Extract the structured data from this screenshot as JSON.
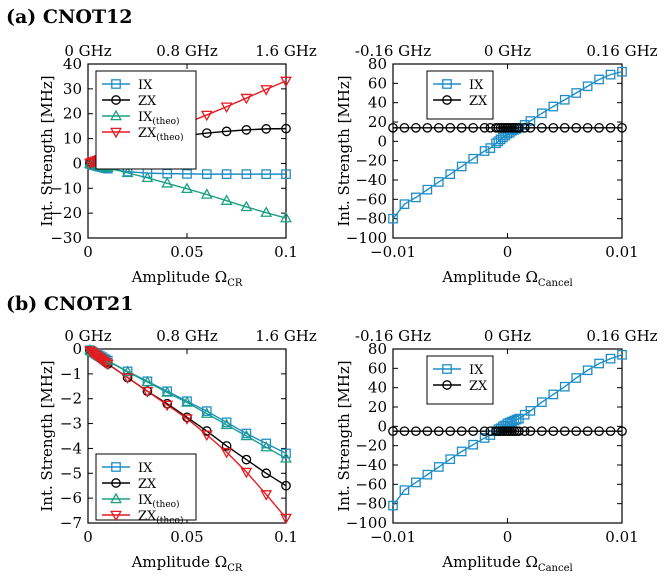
{
  "figure": {
    "panel_a_title": "(a) CNOT12",
    "panel_b_title": "(b) CNOT21"
  },
  "colors": {
    "IX": "#1f8ec8",
    "ZX": "#000000",
    "IX_theo": "#1aa085",
    "ZX_theo": "#e8191e"
  },
  "chart_data": [
    {
      "id": "a-left",
      "type": "line",
      "title": "",
      "xlabel": "Amplitude",
      "xlabel_symbol": "Ω",
      "xlabel_sub": "CR",
      "ylabel": "Int. Strength [MHz]",
      "xlim": [
        0,
        0.1
      ],
      "ylim": [
        -30,
        40
      ],
      "xticks": [
        0,
        0.05,
        0.1
      ],
      "xtick_labels": [
        "0",
        "0.05",
        "0.1"
      ],
      "yticks": [
        -30,
        -20,
        -10,
        0,
        10,
        20,
        30,
        40
      ],
      "ytick_labels": [
        "−30",
        "−20",
        "−10",
        "0",
        "10",
        "20",
        "30",
        "40"
      ],
      "top_axis_labels": [
        "0 GHz",
        "0.8 GHz",
        "1.6 GHz"
      ],
      "top_axis_values": [
        0,
        0.05,
        0.1
      ],
      "grid": false,
      "legend": "top-left",
      "series": [
        {
          "name": "IX",
          "key": "IX",
          "marker": "square",
          "x": [
            0.001,
            0.002,
            0.003,
            0.004,
            0.005,
            0.006,
            0.007,
            0.008,
            0.009,
            0.01,
            0.02,
            0.03,
            0.04,
            0.05,
            0.06,
            0.07,
            0.08,
            0.09,
            0.1
          ],
          "y": [
            -0.2,
            -0.4,
            -0.7,
            -0.9,
            -1.1,
            -1.3,
            -1.5,
            -1.7,
            -1.9,
            -2.1,
            -3.3,
            -3.9,
            -4.1,
            -4.2,
            -4.3,
            -4.3,
            -4.3,
            -4.3,
            -4.3
          ]
        },
        {
          "name": "ZX",
          "key": "ZX",
          "marker": "circle",
          "x": [
            0.001,
            0.002,
            0.003,
            0.004,
            0.005,
            0.006,
            0.007,
            0.008,
            0.009,
            0.01,
            0.02,
            0.03,
            0.04,
            0.05,
            0.06,
            0.07,
            0.08,
            0.09,
            0.1
          ],
          "y": [
            0.2,
            0.5,
            0.8,
            1.0,
            1.3,
            1.6,
            1.9,
            2.2,
            2.4,
            2.7,
            5.8,
            8.0,
            9.8,
            11.2,
            12.2,
            12.9,
            13.5,
            13.9,
            14.0
          ]
        },
        {
          "name": "IX",
          "name_sub": "(theo)",
          "key": "IX_theo",
          "marker": "triangle-up",
          "x": [
            0.001,
            0.002,
            0.003,
            0.004,
            0.005,
            0.006,
            0.007,
            0.008,
            0.009,
            0.01,
            0.02,
            0.03,
            0.04,
            0.05,
            0.06,
            0.07,
            0.08,
            0.09,
            0.1
          ],
          "y": [
            -0.1,
            -0.3,
            -0.5,
            -0.6,
            -0.8,
            -1.0,
            -1.2,
            -1.4,
            -1.6,
            -1.8,
            -3.8,
            -5.8,
            -8.0,
            -10.2,
            -12.5,
            -15.0,
            -17.5,
            -19.8,
            -22.0
          ]
        },
        {
          "name": "ZX",
          "name_sub": "(theo)",
          "key": "ZX_theo",
          "marker": "triangle-down",
          "x": [
            0.001,
            0.002,
            0.003,
            0.004,
            0.005,
            0.006,
            0.007,
            0.008,
            0.009,
            0.01,
            0.02,
            0.03,
            0.04,
            0.05,
            0.06,
            0.07,
            0.08,
            0.09,
            0.1
          ],
          "y": [
            0.2,
            0.5,
            0.8,
            1.1,
            1.4,
            1.7,
            2.0,
            2.3,
            2.6,
            3.0,
            6.5,
            9.8,
            13.0,
            16.3,
            19.5,
            22.8,
            26.3,
            29.8,
            33.2
          ]
        }
      ]
    },
    {
      "id": "a-right",
      "type": "line",
      "title": "",
      "xlabel": "Amplitude",
      "xlabel_symbol": "Ω",
      "xlabel_sub": "Cancel",
      "ylabel": "Int. Strength [MHz]",
      "xlim": [
        -0.01,
        0.01
      ],
      "ylim": [
        -100,
        80
      ],
      "xticks": [
        -0.01,
        0,
        0.01
      ],
      "xtick_labels": [
        "−0.01",
        "0",
        "0.01"
      ],
      "yticks": [
        -100,
        -80,
        -60,
        -40,
        -20,
        0,
        20,
        40,
        60,
        80
      ],
      "ytick_labels": [
        "−100",
        "−80",
        "−60",
        "−40",
        "−20",
        "0",
        "20",
        "40",
        "60",
        "80"
      ],
      "top_axis_labels": [
        "-0.16 GHz",
        "0 GHz",
        "0.16 GHz"
      ],
      "top_axis_values": [
        -0.01,
        0,
        0.01
      ],
      "grid": false,
      "legend": "top-left",
      "series": [
        {
          "name": "IX",
          "key": "IX",
          "marker": "square",
          "x": [
            -0.01,
            -0.009,
            -0.008,
            -0.007,
            -0.006,
            -0.005,
            -0.004,
            -0.003,
            -0.002,
            -0.0015,
            -0.001,
            -0.0008,
            -0.0006,
            -0.0004,
            -0.0002,
            0,
            0.0002,
            0.0004,
            0.0006,
            0.0008,
            0.001,
            0.0015,
            0.002,
            0.003,
            0.004,
            0.005,
            0.006,
            0.007,
            0.008,
            0.009,
            0.01
          ],
          "y": [
            -80,
            -65,
            -58,
            -50,
            -42,
            -34,
            -26,
            -18,
            -10,
            -7,
            -2,
            0,
            2,
            4,
            6,
            8,
            9,
            11,
            12,
            13,
            14,
            17,
            21,
            29,
            36,
            43,
            50,
            57,
            64,
            69,
            72
          ]
        },
        {
          "name": "ZX",
          "key": "ZX",
          "marker": "circle",
          "x": [
            -0.01,
            -0.009,
            -0.008,
            -0.007,
            -0.006,
            -0.005,
            -0.004,
            -0.003,
            -0.002,
            -0.0015,
            -0.001,
            -0.0008,
            -0.0006,
            -0.0004,
            -0.0002,
            0,
            0.0002,
            0.0004,
            0.0006,
            0.0008,
            0.001,
            0.0015,
            0.002,
            0.003,
            0.004,
            0.005,
            0.006,
            0.007,
            0.008,
            0.009,
            0.01
          ],
          "y": [
            14,
            14,
            14,
            14,
            14,
            14,
            14,
            14,
            14,
            14,
            14,
            14,
            14,
            14,
            14,
            14,
            14,
            14,
            14,
            14,
            14,
            14,
            14,
            14,
            14,
            14,
            14,
            14,
            14,
            14,
            14
          ]
        }
      ]
    },
    {
      "id": "b-left",
      "type": "line",
      "title": "",
      "xlabel": "Amplitude",
      "xlabel_symbol": "Ω",
      "xlabel_sub": "CR",
      "ylabel": "Int. Strength [MHz]",
      "xlim": [
        0,
        0.1
      ],
      "ylim": [
        -7,
        0
      ],
      "xticks": [
        0,
        0.05,
        0.1
      ],
      "xtick_labels": [
        "0",
        "0.05",
        "0.1"
      ],
      "yticks": [
        -7,
        -6,
        -5,
        -4,
        -3,
        -2,
        -1,
        0
      ],
      "ytick_labels": [
        "−7",
        "−6",
        "−5",
        "−4",
        "−3",
        "−2",
        "−1",
        "0"
      ],
      "top_axis_labels": [
        "0 GHz",
        "0.8 GHz",
        "1.6 GHz"
      ],
      "top_axis_values": [
        0,
        0.05,
        0.1
      ],
      "grid": false,
      "legend": "bottom-left",
      "series": [
        {
          "name": "IX",
          "key": "IX",
          "marker": "square",
          "x": [
            0.001,
            0.002,
            0.003,
            0.004,
            0.005,
            0.006,
            0.007,
            0.008,
            0.009,
            0.01,
            0.02,
            0.03,
            0.04,
            0.05,
            0.06,
            0.07,
            0.08,
            0.09,
            0.1
          ],
          "y": [
            -0.05,
            -0.1,
            -0.14,
            -0.19,
            -0.24,
            -0.28,
            -0.33,
            -0.38,
            -0.42,
            -0.47,
            -0.9,
            -1.3,
            -1.7,
            -2.1,
            -2.5,
            -2.95,
            -3.4,
            -3.8,
            -4.2
          ]
        },
        {
          "name": "ZX",
          "key": "ZX",
          "marker": "circle",
          "x": [
            0.001,
            0.002,
            0.003,
            0.004,
            0.005,
            0.006,
            0.007,
            0.008,
            0.009,
            0.01,
            0.02,
            0.03,
            0.04,
            0.05,
            0.06,
            0.07,
            0.08,
            0.09,
            0.1
          ],
          "y": [
            -0.06,
            -0.12,
            -0.18,
            -0.24,
            -0.3,
            -0.36,
            -0.42,
            -0.48,
            -0.54,
            -0.6,
            -1.15,
            -1.7,
            -2.2,
            -2.75,
            -3.3,
            -3.9,
            -4.45,
            -5.0,
            -5.5
          ]
        },
        {
          "name": "IX",
          "name_sub": "(theo)",
          "key": "IX_theo",
          "marker": "triangle-up",
          "x": [
            0.001,
            0.002,
            0.003,
            0.004,
            0.005,
            0.006,
            0.007,
            0.008,
            0.009,
            0.01,
            0.02,
            0.03,
            0.04,
            0.05,
            0.06,
            0.07,
            0.08,
            0.09,
            0.1
          ],
          "y": [
            -0.05,
            -0.1,
            -0.15,
            -0.2,
            -0.25,
            -0.3,
            -0.34,
            -0.39,
            -0.43,
            -0.48,
            -0.92,
            -1.33,
            -1.75,
            -2.15,
            -2.6,
            -3.05,
            -3.5,
            -3.95,
            -4.4
          ]
        },
        {
          "name": "ZX",
          "name_sub": "(theo)",
          "key": "ZX_theo",
          "marker": "triangle-down",
          "x": [
            0.001,
            0.002,
            0.003,
            0.004,
            0.005,
            0.006,
            0.007,
            0.008,
            0.009,
            0.01,
            0.02,
            0.03,
            0.04,
            0.05,
            0.06,
            0.07,
            0.08,
            0.09,
            0.1
          ],
          "y": [
            -0.06,
            -0.12,
            -0.18,
            -0.24,
            -0.3,
            -0.36,
            -0.42,
            -0.48,
            -0.54,
            -0.6,
            -1.15,
            -1.7,
            -2.25,
            -2.8,
            -3.45,
            -4.15,
            -4.95,
            -5.85,
            -6.8
          ]
        }
      ]
    },
    {
      "id": "b-right",
      "type": "line",
      "title": "",
      "xlabel": "Amplitude",
      "xlabel_symbol": "Ω",
      "xlabel_sub": "Cancel",
      "ylabel": "Int. Strength [MHz]",
      "xlim": [
        -0.01,
        0.01
      ],
      "ylim": [
        -100,
        80
      ],
      "xticks": [
        -0.01,
        0,
        0.01
      ],
      "xtick_labels": [
        "−0.01",
        "0",
        "0.01"
      ],
      "yticks": [
        -100,
        -80,
        -60,
        -40,
        -20,
        0,
        20,
        40,
        60,
        80
      ],
      "ytick_labels": [
        "−100",
        "−80",
        "−60",
        "−40",
        "−20",
        "0",
        "20",
        "40",
        "60",
        "80"
      ],
      "top_axis_labels": [
        "-0.16 GHz",
        "0 GHz",
        "0.16 GHz"
      ],
      "top_axis_values": [
        -0.01,
        0,
        0.01
      ],
      "grid": false,
      "legend": "top-left",
      "series": [
        {
          "name": "IX",
          "key": "IX",
          "marker": "square",
          "x": [
            -0.01,
            -0.009,
            -0.008,
            -0.007,
            -0.006,
            -0.005,
            -0.004,
            -0.003,
            -0.002,
            -0.0015,
            -0.001,
            -0.0008,
            -0.0006,
            -0.0004,
            -0.0002,
            0,
            0.0002,
            0.0004,
            0.0006,
            0.0008,
            0.001,
            0.0015,
            0.002,
            0.003,
            0.004,
            0.005,
            0.006,
            0.007,
            0.008,
            0.009,
            0.01
          ],
          "y": [
            -82,
            -66,
            -58,
            -50,
            -42,
            -34,
            -26,
            -19,
            -12,
            -9,
            -5,
            -3,
            -2,
            0,
            1,
            3,
            4,
            5,
            6,
            7,
            8,
            12,
            16,
            25,
            33,
            41,
            50,
            58,
            65,
            70,
            74
          ]
        },
        {
          "name": "ZX",
          "key": "ZX",
          "marker": "circle",
          "x": [
            -0.01,
            -0.009,
            -0.008,
            -0.007,
            -0.006,
            -0.005,
            -0.004,
            -0.003,
            -0.002,
            -0.0015,
            -0.001,
            -0.0008,
            -0.0006,
            -0.0004,
            -0.0002,
            0,
            0.0002,
            0.0004,
            0.0006,
            0.0008,
            0.001,
            0.0015,
            0.002,
            0.003,
            0.004,
            0.005,
            0.006,
            0.007,
            0.008,
            0.009,
            0.01
          ],
          "y": [
            -5,
            -5,
            -5,
            -5,
            -5,
            -5,
            -5,
            -5,
            -5,
            -5,
            -5,
            -5,
            -5,
            -5,
            -5,
            -5,
            -5,
            -5,
            -5,
            -5,
            -5,
            -5,
            -5,
            -5,
            -5,
            -5,
            -5,
            -5,
            -5,
            -5,
            -5
          ]
        }
      ]
    }
  ]
}
